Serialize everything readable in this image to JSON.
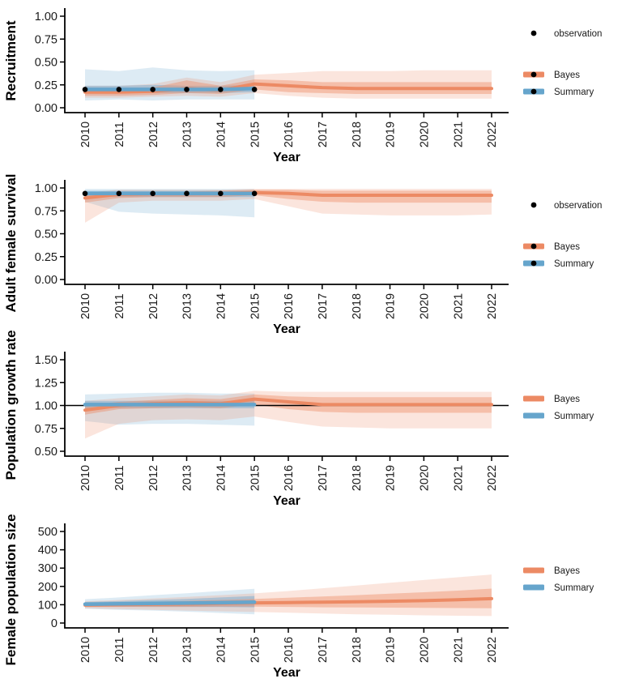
{
  "figure": {
    "x_axis_label": "Year",
    "x_ticks": [
      2010,
      2011,
      2012,
      2013,
      2014,
      2015,
      2016,
      2017,
      2018,
      2019,
      2020,
      2021,
      2022
    ],
    "colors": {
      "bayes": "#EC8A64",
      "summary": "#66A5CC",
      "observation": "#000000",
      "axis": "#000000",
      "tick_label": "#1a1a1a",
      "background": "#ffffff"
    }
  },
  "chart_data": [
    {
      "type": "area",
      "title": "",
      "ylabel": "Recruitment",
      "xlabel": "Year",
      "ylim": [
        0.0,
        1.0
      ],
      "yticks": [
        0,
        0.25,
        0.5,
        0.75,
        1
      ],
      "ytick_labels": [
        "0.00",
        "0.25",
        "0.50",
        "0.75",
        "1.00"
      ],
      "hline": null,
      "x_summary": [
        2010,
        2011,
        2012,
        2013,
        2014,
        2015
      ],
      "x_bayes": [
        2010,
        2011,
        2012,
        2013,
        2014,
        2015,
        2016,
        2017,
        2018,
        2019,
        2020,
        2021,
        2022
      ],
      "observation": [
        0.2,
        0.2,
        0.2,
        0.2,
        0.2,
        0.2
      ],
      "summary": {
        "median": [
          0.2,
          0.2,
          0.2,
          0.2,
          0.2,
          0.21
        ],
        "inner_lo": [
          0.16,
          0.16,
          0.16,
          0.16,
          0.16,
          0.17
        ],
        "inner_hi": [
          0.24,
          0.24,
          0.25,
          0.24,
          0.24,
          0.25
        ],
        "outer_lo": [
          0.08,
          0.09,
          0.08,
          0.09,
          0.09,
          0.09
        ],
        "outer_hi": [
          0.42,
          0.4,
          0.44,
          0.41,
          0.4,
          0.41
        ]
      },
      "bayes": {
        "median": [
          0.17,
          0.17,
          0.18,
          0.21,
          0.19,
          0.26,
          0.24,
          0.22,
          0.21,
          0.21,
          0.21,
          0.21,
          0.21
        ],
        "inner_lo": [
          0.13,
          0.13,
          0.14,
          0.16,
          0.15,
          0.2,
          0.17,
          0.16,
          0.15,
          0.15,
          0.15,
          0.15,
          0.15
        ],
        "inner_hi": [
          0.21,
          0.21,
          0.22,
          0.3,
          0.24,
          0.31,
          0.3,
          0.28,
          0.28,
          0.28,
          0.28,
          0.28,
          0.28
        ],
        "outer_lo": [
          0.11,
          0.11,
          0.12,
          0.13,
          0.12,
          0.16,
          0.13,
          0.11,
          0.1,
          0.1,
          0.1,
          0.1,
          0.1
        ],
        "outer_hi": [
          0.24,
          0.24,
          0.26,
          0.33,
          0.28,
          0.36,
          0.38,
          0.4,
          0.4,
          0.4,
          0.41,
          0.41,
          0.41
        ]
      },
      "legend": [
        {
          "label": "observation",
          "type": "point"
        },
        {
          "label": "Bayes",
          "type": "line-point",
          "color": "bayes"
        },
        {
          "label": "Summary",
          "type": "line-point",
          "color": "summary"
        }
      ]
    },
    {
      "type": "area",
      "title": "",
      "ylabel": "Adult female survival",
      "xlabel": "Year",
      "ylim": [
        0.0,
        1.0
      ],
      "yticks": [
        0,
        0.25,
        0.5,
        0.75,
        1
      ],
      "ytick_labels": [
        "0.00",
        "0.25",
        "0.50",
        "0.75",
        "1.00"
      ],
      "hline": null,
      "x_summary": [
        2010,
        2011,
        2012,
        2013,
        2014,
        2015
      ],
      "x_bayes": [
        2010,
        2011,
        2012,
        2013,
        2014,
        2015,
        2016,
        2017,
        2018,
        2019,
        2020,
        2021,
        2022
      ],
      "observation": [
        0.94,
        0.94,
        0.94,
        0.94,
        0.94,
        0.94
      ],
      "summary": {
        "median": [
          0.94,
          0.94,
          0.94,
          0.94,
          0.94,
          0.94
        ],
        "inner_lo": [
          0.9,
          0.9,
          0.9,
          0.9,
          0.9,
          0.9
        ],
        "inner_hi": [
          0.97,
          0.97,
          0.97,
          0.97,
          0.97,
          0.97
        ],
        "outer_lo": [
          0.85,
          0.74,
          0.72,
          0.71,
          0.7,
          0.68
        ],
        "outer_hi": [
          0.99,
          0.99,
          0.99,
          0.99,
          0.99,
          0.99
        ]
      },
      "bayes": {
        "median": [
          0.89,
          0.93,
          0.935,
          0.935,
          0.94,
          0.95,
          0.94,
          0.92,
          0.92,
          0.92,
          0.92,
          0.92,
          0.92
        ],
        "inner_lo": [
          0.84,
          0.89,
          0.9,
          0.9,
          0.9,
          0.92,
          0.88,
          0.85,
          0.84,
          0.84,
          0.84,
          0.84,
          0.84
        ],
        "inner_hi": [
          0.93,
          0.96,
          0.96,
          0.96,
          0.97,
          0.98,
          0.98,
          0.97,
          0.97,
          0.97,
          0.97,
          0.97,
          0.97
        ],
        "outer_lo": [
          0.62,
          0.84,
          0.86,
          0.86,
          0.86,
          0.88,
          0.8,
          0.72,
          0.71,
          0.7,
          0.7,
          0.7,
          0.71
        ],
        "outer_hi": [
          0.95,
          0.98,
          0.98,
          0.98,
          0.98,
          0.99,
          0.99,
          0.99,
          0.99,
          0.99,
          0.99,
          0.99,
          0.99
        ]
      },
      "legend": [
        {
          "label": "observation",
          "type": "point"
        },
        {
          "label": "Bayes",
          "type": "line-point",
          "color": "bayes"
        },
        {
          "label": "Summary",
          "type": "line-point",
          "color": "summary"
        }
      ]
    },
    {
      "type": "area",
      "title": "",
      "ylabel": "Population growth rate",
      "xlabel": "Year",
      "ylim": [
        0.5,
        1.5
      ],
      "yticks": [
        0.5,
        0.75,
        1,
        1.25,
        1.5
      ],
      "ytick_labels": [
        "0.50",
        "0.75",
        "1.00",
        "1.25",
        "1.50"
      ],
      "hline": 1.0,
      "x_summary": [
        2010,
        2011,
        2012,
        2013,
        2014,
        2015
      ],
      "x_bayes": [
        2010,
        2011,
        2012,
        2013,
        2014,
        2015,
        2016,
        2017,
        2018,
        2019,
        2020,
        2021,
        2022
      ],
      "observation": null,
      "summary": {
        "median": [
          1.01,
          1.01,
          1.01,
          1.01,
          1.01,
          1.01
        ],
        "inner_lo": [
          0.97,
          0.97,
          0.97,
          0.97,
          0.97,
          0.97
        ],
        "inner_hi": [
          1.05,
          1.05,
          1.05,
          1.05,
          1.05,
          1.05
        ],
        "outer_lo": [
          0.83,
          0.79,
          0.8,
          0.8,
          0.79,
          0.78
        ],
        "outer_hi": [
          1.12,
          1.13,
          1.14,
          1.14,
          1.13,
          1.13
        ]
      },
      "bayes": {
        "median": [
          0.95,
          1.0,
          1.02,
          1.03,
          1.02,
          1.07,
          1.04,
          1.01,
          1.01,
          1.01,
          1.01,
          1.01,
          1.01
        ],
        "inner_lo": [
          0.9,
          0.96,
          0.97,
          0.98,
          0.97,
          1.01,
          0.96,
          0.93,
          0.92,
          0.92,
          0.92,
          0.92,
          0.92
        ],
        "inner_hi": [
          1.0,
          1.04,
          1.06,
          1.08,
          1.07,
          1.12,
          1.1,
          1.09,
          1.09,
          1.09,
          1.09,
          1.09,
          1.09
        ],
        "outer_lo": [
          0.64,
          0.8,
          0.84,
          0.85,
          0.84,
          0.88,
          0.82,
          0.77,
          0.76,
          0.75,
          0.75,
          0.75,
          0.75
        ],
        "outer_hi": [
          1.05,
          1.08,
          1.1,
          1.12,
          1.11,
          1.16,
          1.15,
          1.15,
          1.15,
          1.15,
          1.15,
          1.15,
          1.15
        ]
      },
      "legend": [
        {
          "label": "Bayes",
          "type": "line",
          "color": "bayes"
        },
        {
          "label": "Summary",
          "type": "line",
          "color": "summary"
        }
      ]
    },
    {
      "type": "area",
      "title": "",
      "ylabel": "Female population size",
      "xlabel": "Year",
      "ylim": [
        0,
        500
      ],
      "yticks": [
        0,
        100,
        200,
        300,
        400,
        500
      ],
      "ytick_labels": [
        "0",
        "100",
        "200",
        "300",
        "400",
        "500"
      ],
      "hline": null,
      "x_summary": [
        2010,
        2011,
        2012,
        2013,
        2014,
        2015
      ],
      "x_bayes": [
        2010,
        2011,
        2012,
        2013,
        2014,
        2015,
        2016,
        2017,
        2018,
        2019,
        2020,
        2021,
        2022
      ],
      "observation": null,
      "summary": {
        "median": [
          103,
          105,
          107,
          109,
          111,
          114
        ],
        "inner_lo": [
          90,
          89,
          88,
          88,
          87,
          86
        ],
        "inner_hi": [
          115,
          120,
          126,
          132,
          140,
          148
        ],
        "outer_lo": [
          78,
          72,
          68,
          62,
          55,
          48
        ],
        "outer_hi": [
          130,
          140,
          152,
          163,
          175,
          187
        ]
      },
      "bayes": {
        "median": [
          98,
          100,
          102,
          104,
          107,
          110,
          112,
          114,
          116,
          119,
          122,
          127,
          133
        ],
        "inner_lo": [
          88,
          88,
          88,
          88,
          89,
          90,
          88,
          86,
          85,
          84,
          83,
          82,
          81
        ],
        "inner_hi": [
          108,
          112,
          116,
          121,
          126,
          132,
          138,
          145,
          152,
          160,
          168,
          177,
          188
        ],
        "outer_lo": [
          80,
          76,
          72,
          68,
          64,
          60,
          56,
          52,
          48,
          45,
          42,
          40,
          38
        ],
        "outer_hi": [
          118,
          126,
          134,
          143,
          152,
          162,
          175,
          190,
          205,
          220,
          235,
          250,
          265
        ]
      },
      "legend": [
        {
          "label": "Bayes",
          "type": "line",
          "color": "bayes"
        },
        {
          "label": "Summary",
          "type": "line",
          "color": "summary"
        }
      ]
    }
  ]
}
